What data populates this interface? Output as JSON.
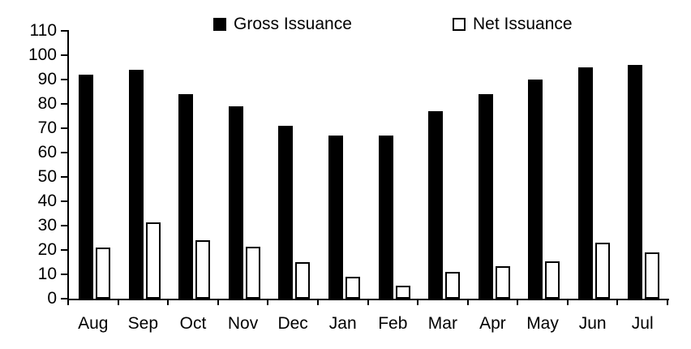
{
  "chart_data": {
    "type": "bar",
    "title": "",
    "xlabel": "",
    "ylabel": "",
    "categories": [
      "Aug",
      "Sep",
      "Oct",
      "Nov",
      "Dec",
      "Jan",
      "Feb",
      "Mar",
      "Apr",
      "May",
      "Jun",
      "Jul"
    ],
    "series": [
      {
        "name": "Gross Issuance",
        "style": "filled",
        "fill": "#000000",
        "stroke": "#000000",
        "values": [
          92,
          94,
          84,
          79,
          71,
          67,
          67,
          77,
          84,
          90,
          95,
          96
        ]
      },
      {
        "name": "Net Issuance",
        "style": "outlined",
        "fill": "#ffffff",
        "stroke": "#000000",
        "values": [
          21,
          31.5,
          24,
          21.5,
          15,
          9,
          5.5,
          11,
          13.5,
          15.5,
          23,
          19
        ]
      }
    ],
    "ylim": [
      0,
      110
    ],
    "yticks": [
      0,
      10,
      20,
      30,
      40,
      50,
      60,
      70,
      80,
      90,
      100,
      110
    ],
    "grid": false,
    "legend_position": "top",
    "colors": {
      "axis": "#000000",
      "text": "#000000",
      "background": "#ffffff"
    }
  },
  "legend": {
    "items": [
      {
        "label": "Gross Issuance",
        "swatch": "filled-black-square"
      },
      {
        "label": "Net Issuance",
        "swatch": "outlined-white-square"
      }
    ]
  }
}
